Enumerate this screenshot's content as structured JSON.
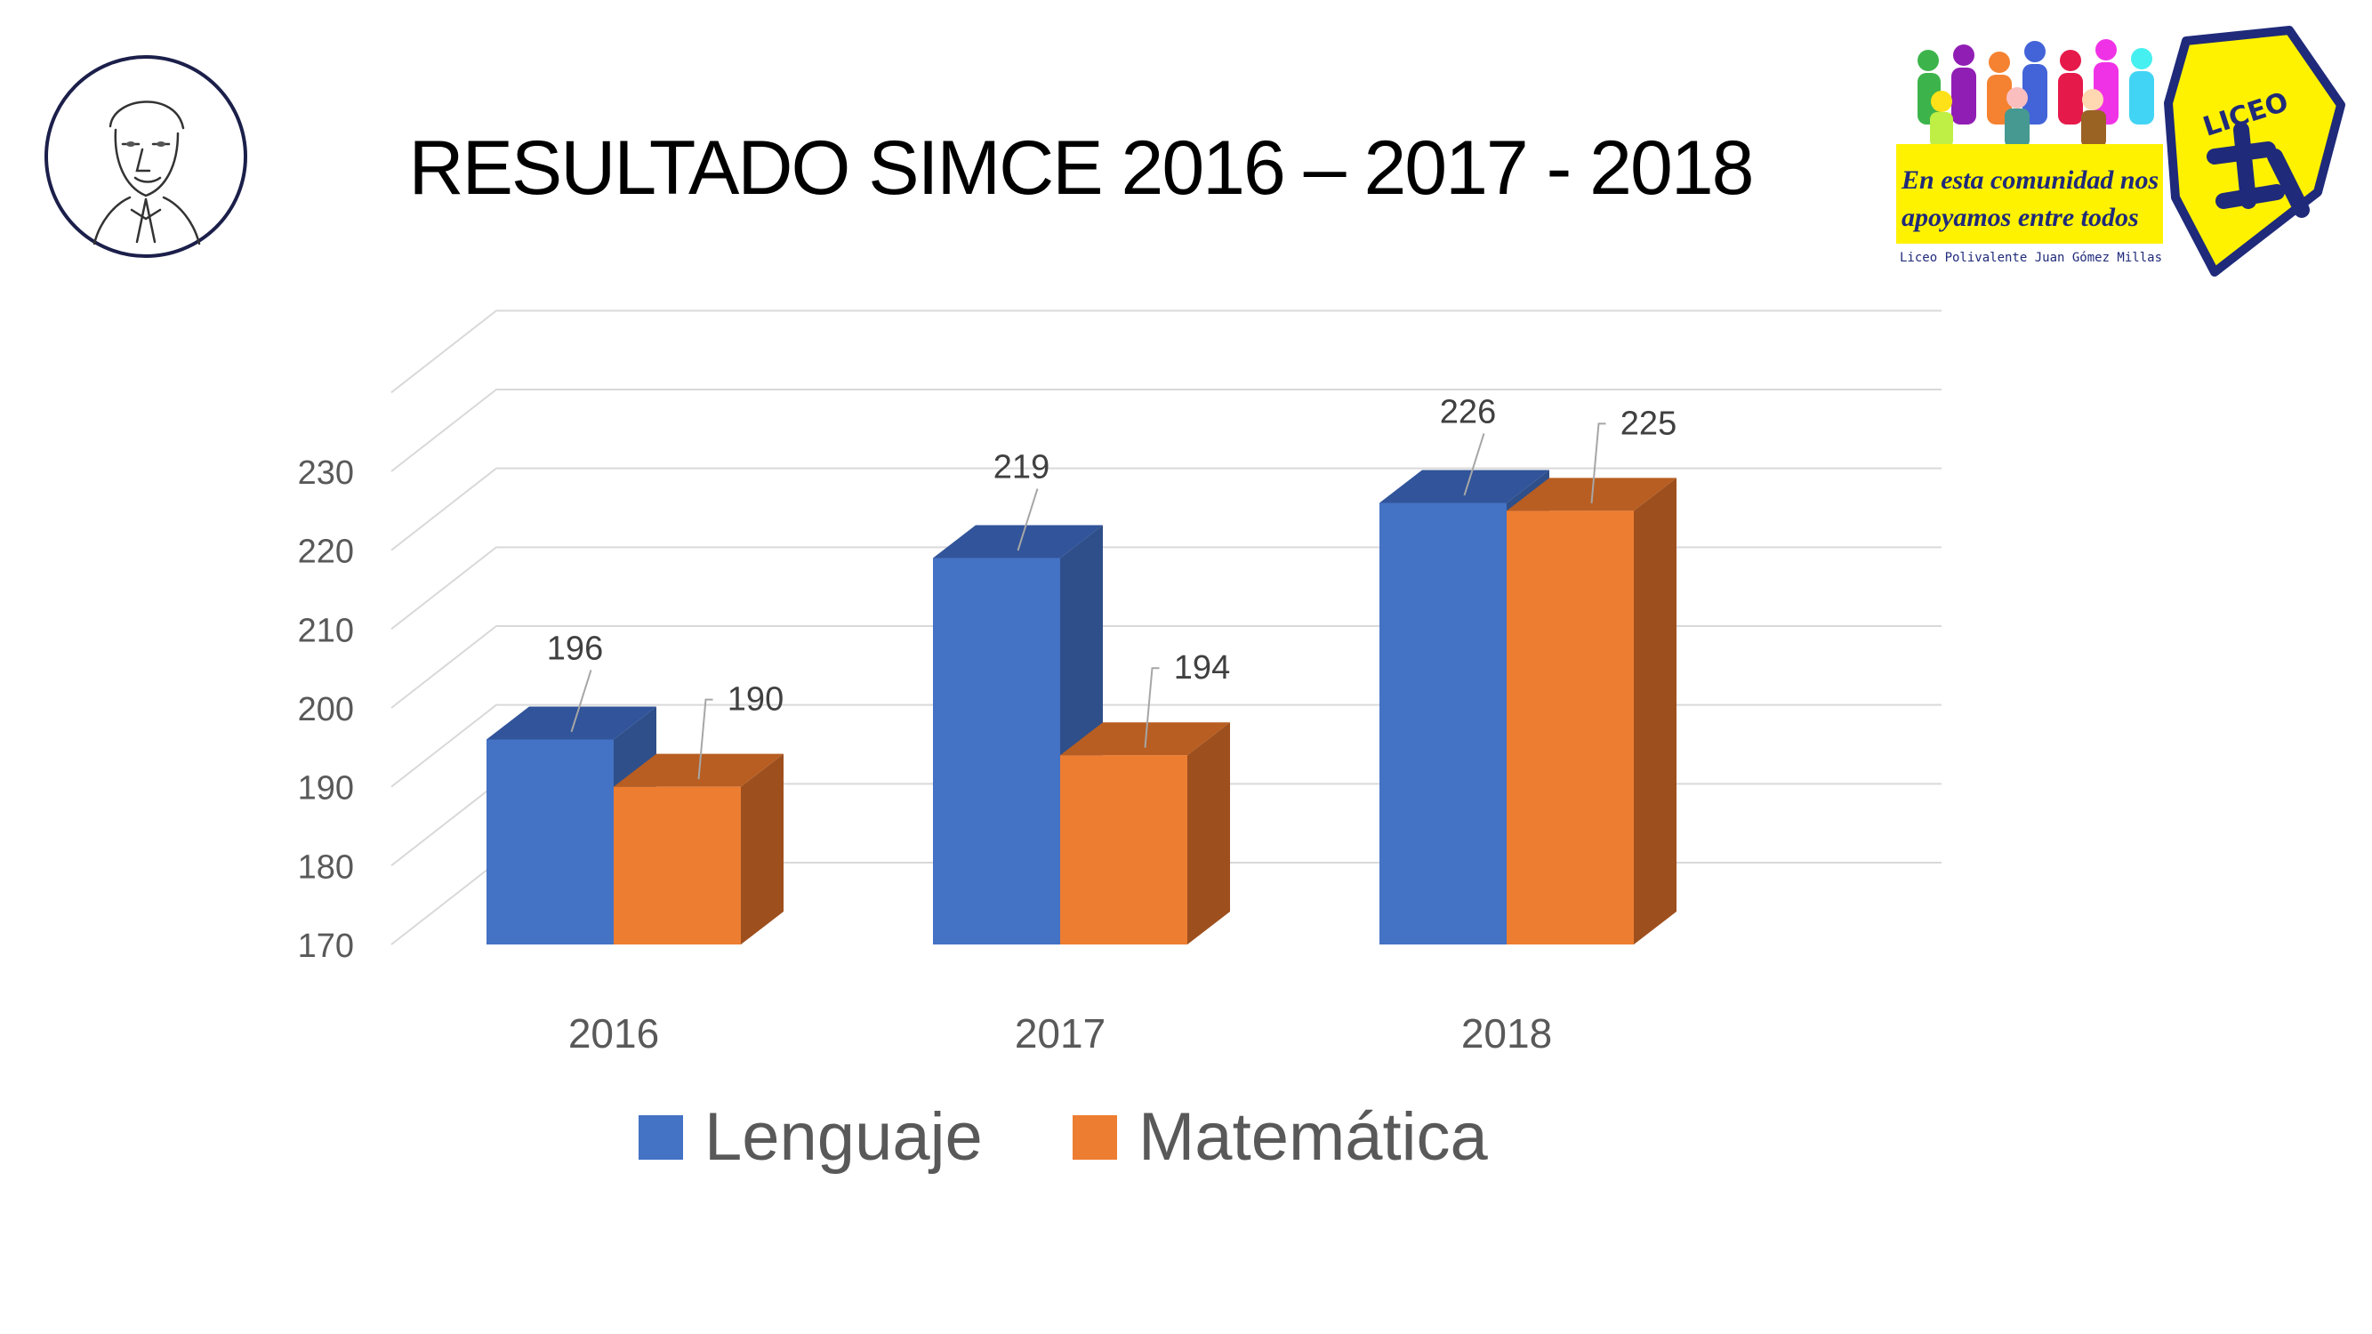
{
  "title": "RESULTADO SIMCE 2016 – 2017 - 2018",
  "logo": {
    "slogan_line1": "En esta comunidad nos",
    "slogan_line2": "apoyamos entre todos",
    "school_name": "Liceo Polivalente Juan Gómez Millas",
    "badge_text": "LICEO"
  },
  "colors": {
    "lenguaje": "#4472C4",
    "matematica": "#ED7D31",
    "logo_yellow": "#FFF200",
    "logo_navy": "#1F2A7A"
  },
  "chart_data": {
    "type": "bar",
    "style": "3d-clustered-column",
    "categories": [
      "2016",
      "2017",
      "2018"
    ],
    "series": [
      {
        "name": "Lenguaje",
        "values": [
          196,
          219,
          226
        ]
      },
      {
        "name": "Matemática",
        "values": [
          190,
          194,
          225
        ]
      }
    ],
    "ylim": [
      170,
      230
    ],
    "yticks": [
      170,
      180,
      190,
      200,
      210,
      220,
      230
    ],
    "grid": true,
    "legend": "bottom"
  }
}
